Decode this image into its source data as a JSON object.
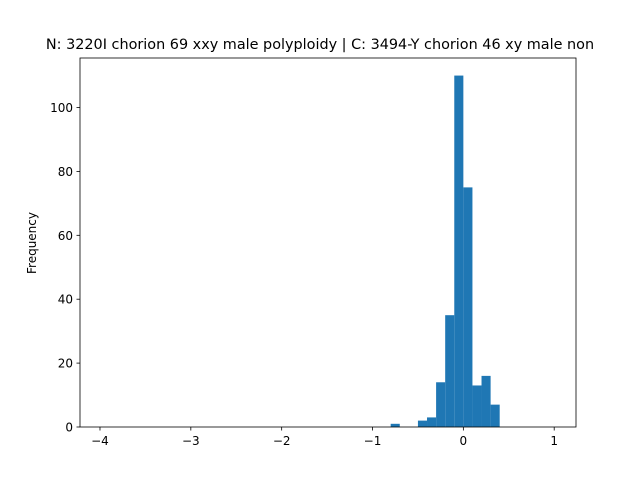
{
  "chart_data": {
    "type": "bar",
    "title": "N: 3220I chorion 69 xxy male polyploidy | C: 3494-Y chorion 46 xy male non",
    "xlabel": "",
    "ylabel": "Frequency",
    "xlim": [
      -4.22,
      1.24
    ],
    "ylim": [
      0,
      115.5
    ],
    "xticks": [
      -4,
      -3,
      -2,
      -1,
      0,
      1
    ],
    "yticks": [
      0,
      20,
      40,
      60,
      80,
      100
    ],
    "bar_color": "#1f77b4",
    "grid": false,
    "bins": [
      {
        "x0": -0.8,
        "x1": -0.7,
        "count": 1
      },
      {
        "x0": -0.5,
        "x1": -0.4,
        "count": 2
      },
      {
        "x0": -0.4,
        "x1": -0.3,
        "count": 3
      },
      {
        "x0": -0.3,
        "x1": -0.2,
        "count": 14
      },
      {
        "x0": -0.2,
        "x1": -0.1,
        "count": 35
      },
      {
        "x0": -0.1,
        "x1": 0.0,
        "count": 110
      },
      {
        "x0": 0.0,
        "x1": 0.1,
        "count": 75
      },
      {
        "x0": 0.1,
        "x1": 0.2,
        "count": 13
      },
      {
        "x0": 0.2,
        "x1": 0.3,
        "count": 16
      },
      {
        "x0": 0.3,
        "x1": 0.4,
        "count": 7
      }
    ]
  }
}
